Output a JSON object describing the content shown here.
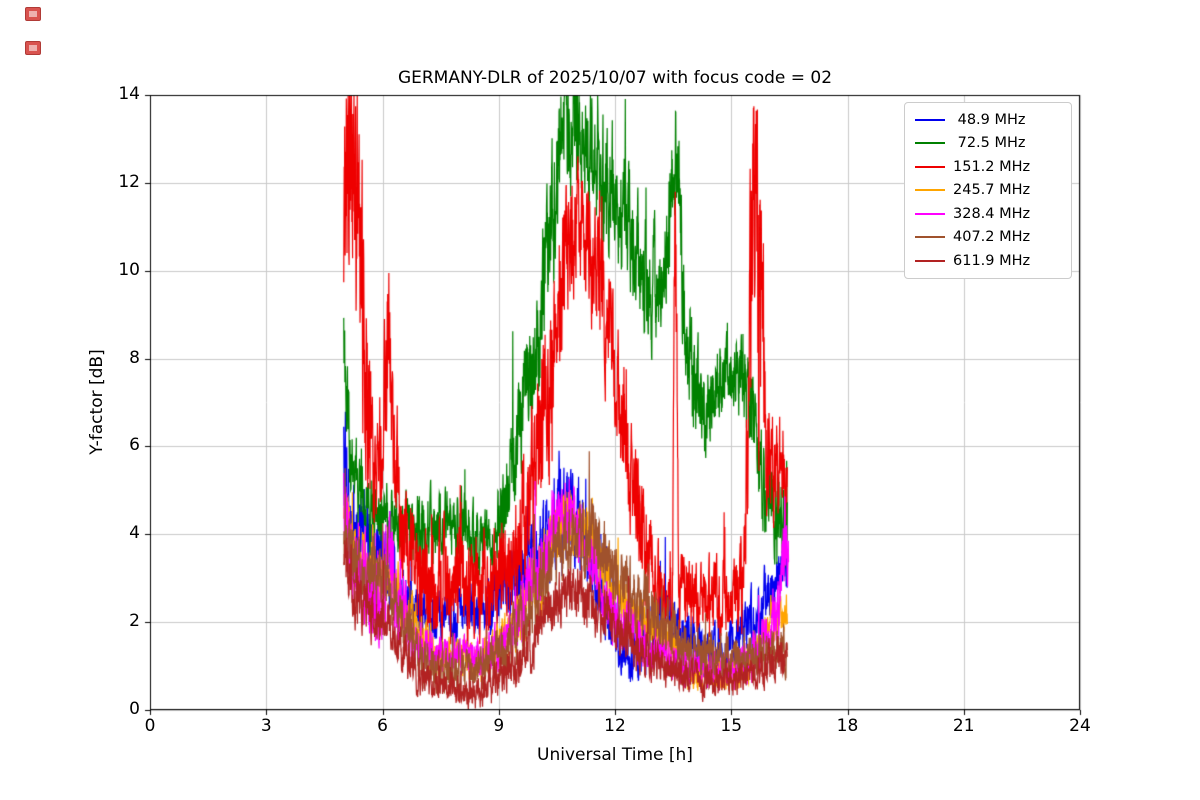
{
  "page": {
    "background": "#ffffff"
  },
  "chart_data": {
    "type": "line",
    "title": "GERMANY-DLR of 2025/10/07 with focus code = 02",
    "xlabel": "Universal Time [h]",
    "ylabel": "Y-factor [dB]",
    "xlim": [
      0,
      24
    ],
    "ylim": [
      0,
      14
    ],
    "xticks": [
      0,
      3,
      6,
      9,
      12,
      15,
      18,
      21,
      24
    ],
    "yticks": [
      0,
      2,
      4,
      6,
      8,
      10,
      12,
      14
    ],
    "grid": true,
    "grid_color": "#c9c9c9",
    "axis_color": "#000000",
    "legend_position": "upper right",
    "x_description": "data spans approximately 05:00 to 16:30 UT",
    "series": [
      {
        "name": "48.9 MHz",
        "label": " 48.9 MHz",
        "color": "#0000ee",
        "keyframes": [
          [
            5.0,
            5.8,
            1.0
          ],
          [
            5.15,
            4.5,
            0.9
          ],
          [
            5.5,
            3.8,
            0.7
          ],
          [
            6.0,
            3.4,
            0.6
          ],
          [
            6.5,
            2.6,
            0.5
          ],
          [
            7.0,
            2.2,
            0.45
          ],
          [
            8.0,
            2.1,
            0.45
          ],
          [
            9.0,
            2.5,
            0.5
          ],
          [
            9.6,
            3.0,
            0.6
          ],
          [
            10.2,
            3.8,
            0.7
          ],
          [
            10.6,
            4.6,
            0.9
          ],
          [
            11.0,
            4.2,
            0.8
          ],
          [
            11.4,
            3.3,
            0.6
          ],
          [
            11.9,
            2.2,
            0.6
          ],
          [
            12.4,
            1.2,
            0.45
          ],
          [
            12.9,
            1.8,
            0.5
          ],
          [
            13.3,
            2.0,
            0.5
          ],
          [
            13.8,
            1.6,
            0.45
          ],
          [
            14.3,
            1.3,
            0.4
          ],
          [
            14.8,
            1.3,
            0.4
          ],
          [
            15.3,
            1.7,
            0.45
          ],
          [
            15.8,
            2.3,
            0.5
          ],
          [
            16.2,
            3.0,
            0.5
          ],
          [
            16.45,
            3.2,
            0.5
          ]
        ]
      },
      {
        "name": "72.5 MHz",
        "label": " 72.5 MHz",
        "color": "#008000",
        "keyframes": [
          [
            5.0,
            8.0,
            0.9
          ],
          [
            5.2,
            5.6,
            0.6
          ],
          [
            5.6,
            4.6,
            0.55
          ],
          [
            6.2,
            4.2,
            0.55
          ],
          [
            7.0,
            4.1,
            0.55
          ],
          [
            7.8,
            4.3,
            0.55
          ],
          [
            8.4,
            4.0,
            0.5
          ],
          [
            8.9,
            3.7,
            0.5
          ],
          [
            9.2,
            5.0,
            0.8
          ],
          [
            9.6,
            6.8,
            0.9
          ],
          [
            10.0,
            8.5,
            1.1
          ],
          [
            10.4,
            11.5,
            1.3
          ],
          [
            10.7,
            13.2,
            1.0
          ],
          [
            11.1,
            13.0,
            1.0
          ],
          [
            11.5,
            12.6,
            1.0
          ],
          [
            11.9,
            12.0,
            1.0
          ],
          [
            12.3,
            11.2,
            1.0
          ],
          [
            12.7,
            9.8,
            0.9
          ],
          [
            13.1,
            9.6,
            0.9
          ],
          [
            13.35,
            10.5,
            1.0
          ],
          [
            13.55,
            13.2,
            1.0
          ],
          [
            13.75,
            10.0,
            1.0
          ],
          [
            14.0,
            7.5,
            0.9
          ],
          [
            14.3,
            6.8,
            0.8
          ],
          [
            14.6,
            7.4,
            0.7
          ],
          [
            15.0,
            7.7,
            0.6
          ],
          [
            15.3,
            7.6,
            0.7
          ],
          [
            15.6,
            6.2,
            0.8
          ],
          [
            15.9,
            4.8,
            0.7
          ],
          [
            16.2,
            4.4,
            0.7
          ],
          [
            16.45,
            4.5,
            0.8
          ]
        ]
      },
      {
        "name": "151.2 MHz",
        "label": "151.2 MHz",
        "color": "#ee0000",
        "keyframes": [
          [
            5.0,
            11.0,
            2.4
          ],
          [
            5.15,
            13.0,
            2.0
          ],
          [
            5.35,
            12.0,
            2.4
          ],
          [
            5.55,
            8.5,
            2.0
          ],
          [
            5.75,
            5.2,
            1.1
          ],
          [
            6.0,
            5.6,
            1.2
          ],
          [
            6.15,
            8.8,
            1.4
          ],
          [
            6.3,
            6.0,
            1.0
          ],
          [
            6.6,
            3.8,
            0.9
          ],
          [
            7.0,
            3.0,
            0.8
          ],
          [
            7.6,
            2.9,
            0.8
          ],
          [
            8.2,
            2.8,
            0.8
          ],
          [
            8.8,
            2.9,
            0.8
          ],
          [
            9.4,
            3.4,
            0.9
          ],
          [
            9.9,
            5.0,
            1.2
          ],
          [
            10.3,
            7.5,
            1.4
          ],
          [
            10.7,
            10.2,
            1.2
          ],
          [
            11.0,
            11.2,
            0.9
          ],
          [
            11.3,
            10.6,
            0.9
          ],
          [
            11.7,
            9.2,
            1.0
          ],
          [
            12.0,
            7.8,
            1.0
          ],
          [
            12.4,
            5.4,
            0.9
          ],
          [
            12.8,
            3.8,
            0.8
          ],
          [
            13.2,
            2.6,
            0.6
          ],
          [
            13.48,
            2.4,
            0.6
          ],
          [
            13.56,
            12.5,
            1.8
          ],
          [
            13.64,
            2.6,
            0.7
          ],
          [
            14.0,
            2.6,
            0.6
          ],
          [
            14.5,
            2.6,
            0.6
          ],
          [
            15.0,
            2.3,
            0.55
          ],
          [
            15.35,
            3.0,
            0.9
          ],
          [
            15.55,
            12.5,
            2.2
          ],
          [
            15.75,
            9.0,
            2.4
          ],
          [
            15.95,
            5.8,
            1.0
          ],
          [
            16.2,
            5.6,
            0.8
          ],
          [
            16.45,
            5.5,
            0.8
          ]
        ]
      },
      {
        "name": "245.7 MHz",
        "label": "245.7 MHz",
        "color": "#ffa500",
        "keyframes": [
          [
            5.0,
            4.8,
            0.5
          ],
          [
            5.2,
            3.7,
            0.5
          ],
          [
            5.8,
            3.3,
            0.5
          ],
          [
            6.3,
            2.9,
            0.5
          ],
          [
            6.8,
            1.9,
            0.45
          ],
          [
            7.3,
            1.3,
            0.35
          ],
          [
            8.0,
            1.2,
            0.3
          ],
          [
            8.6,
            1.1,
            0.3
          ],
          [
            9.2,
            1.6,
            0.4
          ],
          [
            9.7,
            2.3,
            0.5
          ],
          [
            10.2,
            3.4,
            0.6
          ],
          [
            10.6,
            4.3,
            0.55
          ],
          [
            11.0,
            4.3,
            0.55
          ],
          [
            11.4,
            3.7,
            0.5
          ],
          [
            11.9,
            2.9,
            0.5
          ],
          [
            12.4,
            2.2,
            0.45
          ],
          [
            12.9,
            2.0,
            0.4
          ],
          [
            13.4,
            1.4,
            0.4
          ],
          [
            13.9,
            0.9,
            0.3
          ],
          [
            14.5,
            0.8,
            0.28
          ],
          [
            15.1,
            0.8,
            0.28
          ],
          [
            15.6,
            1.2,
            0.35
          ],
          [
            16.0,
            2.0,
            0.35
          ],
          [
            16.45,
            2.3,
            0.3
          ]
        ]
      },
      {
        "name": "328.4 MHz",
        "label": "328.4 MHz",
        "color": "#ff00ff",
        "keyframes": [
          [
            5.0,
            4.6,
            0.8
          ],
          [
            5.3,
            3.1,
            0.8
          ],
          [
            5.8,
            2.5,
            0.85
          ],
          [
            6.2,
            3.3,
            0.8
          ],
          [
            6.6,
            2.1,
            0.6
          ],
          [
            7.0,
            1.4,
            0.35
          ],
          [
            7.8,
            1.25,
            0.3
          ],
          [
            8.6,
            1.25,
            0.3
          ],
          [
            9.3,
            1.7,
            0.45
          ],
          [
            9.8,
            2.8,
            0.6
          ],
          [
            10.3,
            4.0,
            0.6
          ],
          [
            10.7,
            4.7,
            0.5
          ],
          [
            11.0,
            4.3,
            0.5
          ],
          [
            11.4,
            3.3,
            0.5
          ],
          [
            11.9,
            2.3,
            0.5
          ],
          [
            12.4,
            1.8,
            0.45
          ],
          [
            12.9,
            1.5,
            0.4
          ],
          [
            13.4,
            1.2,
            0.4
          ],
          [
            13.9,
            1.0,
            0.33
          ],
          [
            14.4,
            0.9,
            0.3
          ],
          [
            14.9,
            0.9,
            0.3
          ],
          [
            15.4,
            1.1,
            0.35
          ],
          [
            15.9,
            1.5,
            0.45
          ],
          [
            16.25,
            2.2,
            0.6
          ],
          [
            16.38,
            4.2,
            0.7
          ],
          [
            16.48,
            3.2,
            0.5
          ]
        ]
      },
      {
        "name": "407.2 MHz",
        "label": "407.2 MHz",
        "color": "#a0522d",
        "keyframes": [
          [
            5.0,
            3.8,
            0.55
          ],
          [
            5.5,
            3.0,
            0.5
          ],
          [
            6.0,
            3.1,
            0.5
          ],
          [
            6.5,
            2.1,
            0.5
          ],
          [
            7.0,
            1.1,
            0.4
          ],
          [
            7.6,
            0.85,
            0.33
          ],
          [
            8.3,
            0.85,
            0.33
          ],
          [
            9.0,
            1.25,
            0.4
          ],
          [
            9.6,
            1.9,
            0.5
          ],
          [
            10.1,
            2.9,
            0.6
          ],
          [
            10.6,
            3.8,
            0.6
          ],
          [
            11.0,
            4.1,
            0.6
          ],
          [
            11.5,
            3.8,
            0.6
          ],
          [
            12.0,
            3.1,
            0.55
          ],
          [
            12.5,
            2.6,
            0.5
          ],
          [
            13.0,
            2.1,
            0.5
          ],
          [
            13.5,
            1.6,
            0.45
          ],
          [
            14.0,
            1.35,
            0.4
          ],
          [
            14.6,
            1.2,
            0.38
          ],
          [
            15.2,
            1.1,
            0.33
          ],
          [
            15.8,
            1.25,
            0.33
          ],
          [
            16.45,
            1.4,
            0.35
          ]
        ]
      },
      {
        "name": "611.9 MHz",
        "label": "611.9 MHz",
        "color": "#b22222",
        "keyframes": [
          [
            5.0,
            3.3,
            0.5
          ],
          [
            5.5,
            2.3,
            0.45
          ],
          [
            6.0,
            2.0,
            0.4
          ],
          [
            6.5,
            1.25,
            0.35
          ],
          [
            7.0,
            0.8,
            0.3
          ],
          [
            7.6,
            0.6,
            0.27
          ],
          [
            8.1,
            0.45,
            0.27
          ],
          [
            8.35,
            0.35,
            0.25
          ],
          [
            8.7,
            0.6,
            0.27
          ],
          [
            9.3,
            0.95,
            0.33
          ],
          [
            9.8,
            1.4,
            0.4
          ],
          [
            10.3,
            2.1,
            0.45
          ],
          [
            10.8,
            2.7,
            0.45
          ],
          [
            11.1,
            2.8,
            0.45
          ],
          [
            11.5,
            2.3,
            0.45
          ],
          [
            12.0,
            1.85,
            0.4
          ],
          [
            12.5,
            1.5,
            0.4
          ],
          [
            13.0,
            1.2,
            0.35
          ],
          [
            13.5,
            0.95,
            0.3
          ],
          [
            14.0,
            0.75,
            0.27
          ],
          [
            14.6,
            0.65,
            0.25
          ],
          [
            15.2,
            0.7,
            0.27
          ],
          [
            15.7,
            0.9,
            0.3
          ],
          [
            16.1,
            1.15,
            0.3
          ],
          [
            16.45,
            1.3,
            0.3
          ]
        ]
      }
    ]
  }
}
